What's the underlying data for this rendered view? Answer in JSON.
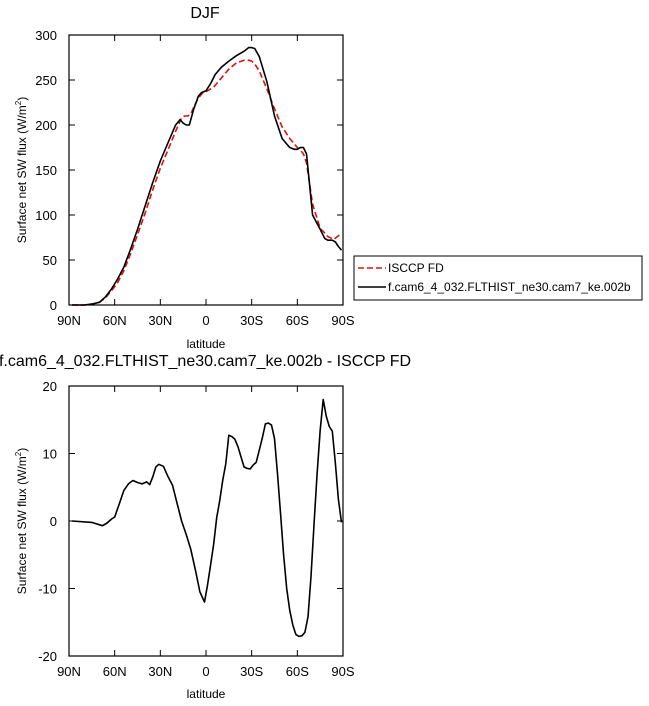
{
  "chart_data": [
    {
      "type": "line",
      "title": "DJF",
      "xlabel": "latitude",
      "ylabel": "Surface net SW flux (W/m",
      "ylabel_sup": "2",
      "ylabel_tail": ")",
      "xlim": [
        90,
        -90
      ],
      "ylim": [
        0,
        300
      ],
      "x_ticks": [
        90,
        60,
        30,
        0,
        -30,
        -60,
        -90
      ],
      "x_tick_labels": [
        "90N",
        "60N",
        "30N",
        "0",
        "30S",
        "60S",
        "90S"
      ],
      "y_ticks": [
        0,
        50,
        100,
        150,
        200,
        250,
        300
      ],
      "y_tick_labels": [
        "0",
        "50",
        "100",
        "150",
        "200",
        "250",
        "300"
      ],
      "legend_position": "right",
      "series": [
        {
          "name": "ISCCP FD",
          "color": "#dd1111",
          "dash": "dashed",
          "x": [
            88,
            80,
            75,
            70,
            66,
            62,
            58,
            54,
            50,
            45,
            40,
            35,
            30,
            25,
            20,
            16,
            14,
            12,
            10,
            8,
            5,
            2,
            0,
            -5,
            -10,
            -15,
            -20,
            -25,
            -28,
            -30,
            -32,
            -35,
            -40,
            -45,
            -50,
            -55,
            -60,
            -62,
            -64,
            -66,
            -70,
            -75,
            -78,
            -80,
            -84,
            -87,
            -89
          ],
          "y": [
            0,
            0,
            1,
            3,
            8,
            16,
            25,
            38,
            55,
            78,
            102,
            128,
            152,
            172,
            193,
            208,
            210,
            210,
            212,
            220,
            230,
            236,
            237,
            242,
            252,
            262,
            269,
            272,
            272,
            271,
            268,
            260,
            240,
            218,
            198,
            185,
            175,
            172,
            168,
            158,
            112,
            85,
            80,
            76,
            73,
            77,
            80
          ]
        },
        {
          "name": "f.cam6_4_032.FLTHIST_ne30.cam7_ke.002b",
          "color": "#000000",
          "dash": "solid",
          "x": [
            88,
            80,
            75,
            70,
            66,
            62,
            58,
            54,
            50,
            45,
            40,
            35,
            30,
            25,
            20,
            17,
            15,
            13,
            11,
            8,
            5,
            3,
            0,
            -3,
            -6,
            -10,
            -15,
            -20,
            -25,
            -28,
            -30,
            -32,
            -35,
            -40,
            -45,
            -50,
            -55,
            -58,
            -60,
            -62,
            -64,
            -66,
            -70,
            -75,
            -78,
            -80,
            -83,
            -85,
            -87,
            -89
          ],
          "y": [
            0,
            0,
            1,
            3,
            9,
            18,
            29,
            42,
            60,
            84,
            110,
            136,
            160,
            180,
            200,
            206,
            202,
            200,
            200,
            218,
            232,
            236,
            238,
            246,
            256,
            264,
            271,
            277,
            282,
            286,
            286,
            285,
            276,
            248,
            210,
            185,
            175,
            173,
            173,
            175,
            175,
            168,
            100,
            84,
            74,
            72,
            72,
            70,
            65,
            61
          ]
        }
      ]
    },
    {
      "type": "line",
      "title": "f.cam6_4_032.FLTHIST_ne30.cam7_ke.002b - ISCCP FD",
      "xlabel": "latitude",
      "ylabel": "Surface net SW flux (W/m",
      "ylabel_sup": "2",
      "ylabel_tail": ")",
      "xlim": [
        90,
        -90
      ],
      "ylim": [
        -20,
        20
      ],
      "x_ticks": [
        90,
        60,
        30,
        0,
        -30,
        -60,
        -90
      ],
      "x_tick_labels": [
        "90N",
        "60N",
        "30N",
        "0",
        "30S",
        "60S",
        "90S"
      ],
      "y_ticks": [
        -20,
        -10,
        0,
        10,
        20
      ],
      "y_tick_labels": [
        "-20",
        "-10",
        "0",
        "10",
        "20"
      ],
      "series": [
        {
          "color": "#000000",
          "dash": "solid",
          "x": [
            88,
            75,
            68,
            65,
            62,
            60,
            57,
            54,
            51,
            48,
            45,
            42,
            39,
            37,
            35,
            33,
            31,
            28,
            25,
            22,
            19,
            16,
            13,
            10,
            7,
            4,
            1,
            -1,
            -3,
            -5,
            -7,
            -9,
            -11,
            -13,
            -15,
            -17,
            -19,
            -21,
            -23,
            -25,
            -27,
            -29,
            -31,
            -33,
            -35,
            -37,
            -39,
            -41,
            -43,
            -45,
            -47,
            -49,
            -51,
            -53,
            -55,
            -57,
            -59,
            -61,
            -63,
            -65,
            -67,
            -69,
            -71,
            -73,
            -75,
            -77,
            -79,
            -81,
            -83,
            -85,
            -87,
            -89
          ],
          "y": [
            0,
            -0.2,
            -0.7,
            -0.3,
            0.3,
            0.6,
            2.5,
            4.5,
            5.5,
            6,
            5.7,
            5.5,
            5.8,
            5.4,
            6.5,
            8,
            8.4,
            8.1,
            6.6,
            5.3,
            2.6,
            0,
            -2,
            -4.2,
            -7.2,
            -10.5,
            -12,
            -9.5,
            -6.5,
            -3.5,
            0.5,
            3,
            6,
            8.5,
            12.7,
            12.5,
            12.1,
            11,
            9.5,
            8,
            7.8,
            7.7,
            8.3,
            8.7,
            10.5,
            12.3,
            14.4,
            14.5,
            14.2,
            12.2,
            7,
            1,
            -5,
            -10,
            -13.2,
            -15.4,
            -16.8,
            -17.1,
            -17,
            -16.5,
            -14.2,
            -8.2,
            -0.3,
            7,
            13.5,
            18,
            15.5,
            14,
            13.3,
            8.5,
            3.2,
            -0.2
          ]
        }
      ]
    }
  ]
}
